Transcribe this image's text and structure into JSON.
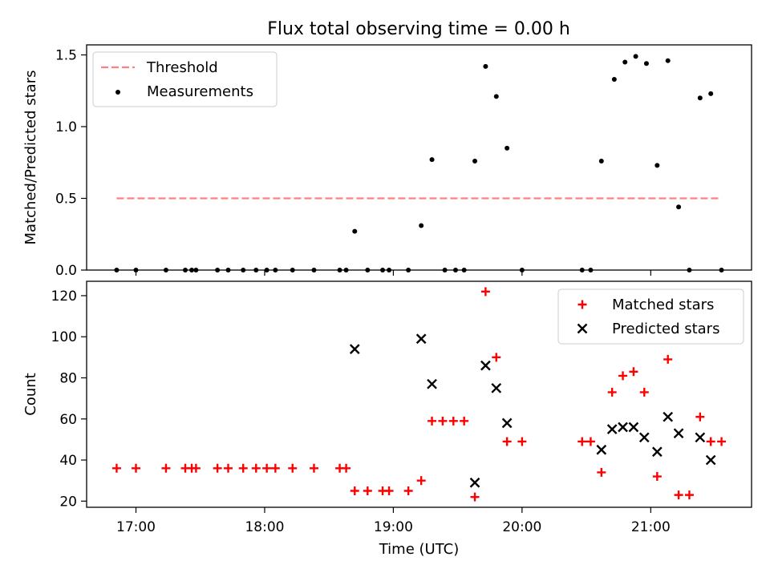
{
  "title": "Flux total observing time = 0.00 h",
  "chart_data": [
    {
      "type": "scatter",
      "ylabel": "Matched/Predicted stars",
      "xlim": [
        "16:37",
        "21:47"
      ],
      "ylim": [
        0,
        1.57
      ],
      "yticks": [
        "0.0",
        "0.5",
        "1.0",
        "1.5"
      ],
      "ytick_values": [
        0,
        0.5,
        1.0,
        1.5
      ],
      "legend_position": "upper-left",
      "legend": [
        "Threshold",
        "Measurements"
      ],
      "threshold": {
        "name": "Threshold",
        "value": 0.5,
        "x_start": "16:51",
        "x_end": "21:33",
        "color": "#ff8080",
        "style": "dashed"
      },
      "series": [
        {
          "name": "Measurements",
          "color": "#000000",
          "points": [
            [
              "16:51",
              0
            ],
            [
              "17:00",
              0
            ],
            [
              "17:14",
              0
            ],
            [
              "17:23",
              0
            ],
            [
              "17:26",
              0
            ],
            [
              "17:28",
              0
            ],
            [
              "17:38",
              0
            ],
            [
              "17:43",
              0
            ],
            [
              "17:50",
              0
            ],
            [
              "17:56",
              0
            ],
            [
              "18:01",
              0
            ],
            [
              "18:05",
              0
            ],
            [
              "18:13",
              0
            ],
            [
              "18:23",
              0
            ],
            [
              "18:35",
              0
            ],
            [
              "18:38",
              0
            ],
            [
              "18:42",
              0.27
            ],
            [
              "18:48",
              0
            ],
            [
              "18:55",
              0
            ],
            [
              "18:58",
              0
            ],
            [
              "19:07",
              0
            ],
            [
              "19:13",
              0.31
            ],
            [
              "19:18",
              0.77
            ],
            [
              "19:24",
              0
            ],
            [
              "19:29",
              0
            ],
            [
              "19:33",
              0
            ],
            [
              "19:38",
              0.76
            ],
            [
              "19:43",
              1.42
            ],
            [
              "19:48",
              1.21
            ],
            [
              "19:53",
              0.85
            ],
            [
              "20:00",
              0
            ],
            [
              "20:28",
              0
            ],
            [
              "20:32",
              0
            ],
            [
              "20:37",
              0.76
            ],
            [
              "20:43",
              1.33
            ],
            [
              "20:48",
              1.45
            ],
            [
              "20:53",
              1.49
            ],
            [
              "20:58",
              1.44
            ],
            [
              "21:03",
              0.73
            ],
            [
              "21:08",
              1.46
            ],
            [
              "21:13",
              0.44
            ],
            [
              "21:18",
              0
            ],
            [
              "21:23",
              1.2
            ],
            [
              "21:28",
              1.23
            ],
            [
              "21:33",
              0
            ]
          ]
        }
      ]
    },
    {
      "type": "scatter",
      "xlabel": "Time (UTC)",
      "ylabel": "Count",
      "xlim": [
        "16:37",
        "21:47"
      ],
      "ylim": [
        17,
        127
      ],
      "xticks": [
        "17:00",
        "18:00",
        "19:00",
        "20:00",
        "21:00"
      ],
      "yticks": [
        "20",
        "40",
        "60",
        "80",
        "100",
        "120"
      ],
      "ytick_values": [
        20,
        40,
        60,
        80,
        100,
        120
      ],
      "legend_position": "upper-right",
      "legend": [
        "Matched stars",
        "Predicted stars"
      ],
      "series": [
        {
          "name": "Matched stars",
          "marker": "plus",
          "color": "#ff0000",
          "points": [
            [
              "16:51",
              36
            ],
            [
              "17:00",
              36
            ],
            [
              "17:14",
              36
            ],
            [
              "17:23",
              36
            ],
            [
              "17:26",
              36
            ],
            [
              "17:28",
              36
            ],
            [
              "17:38",
              36
            ],
            [
              "17:43",
              36
            ],
            [
              "17:50",
              36
            ],
            [
              "17:56",
              36
            ],
            [
              "18:01",
              36
            ],
            [
              "18:05",
              36
            ],
            [
              "18:13",
              36
            ],
            [
              "18:23",
              36
            ],
            [
              "18:35",
              36
            ],
            [
              "18:38",
              36
            ],
            [
              "18:42",
              25
            ],
            [
              "18:48",
              25
            ],
            [
              "18:55",
              25
            ],
            [
              "18:58",
              25
            ],
            [
              "19:07",
              25
            ],
            [
              "19:13",
              30
            ],
            [
              "19:18",
              59
            ],
            [
              "19:23",
              59
            ],
            [
              "19:28",
              59
            ],
            [
              "19:33",
              59
            ],
            [
              "19:38",
              22
            ],
            [
              "19:43",
              122
            ],
            [
              "19:48",
              90
            ],
            [
              "19:53",
              49
            ],
            [
              "20:00",
              49
            ],
            [
              "20:28",
              49
            ],
            [
              "20:32",
              49
            ],
            [
              "20:37",
              34
            ],
            [
              "20:42",
              73
            ],
            [
              "20:47",
              81
            ],
            [
              "20:52",
              83
            ],
            [
              "20:57",
              73
            ],
            [
              "21:03",
              32
            ],
            [
              "21:08",
              89
            ],
            [
              "21:13",
              23
            ],
            [
              "21:18",
              23
            ],
            [
              "21:23",
              61
            ],
            [
              "21:28",
              49
            ],
            [
              "21:33",
              49
            ]
          ]
        },
        {
          "name": "Predicted stars",
          "marker": "x",
          "color": "#000000",
          "points": [
            [
              "18:42",
              94
            ],
            [
              "19:13",
              99
            ],
            [
              "19:18",
              77
            ],
            [
              "19:38",
              29
            ],
            [
              "19:43",
              86
            ],
            [
              "19:48",
              75
            ],
            [
              "19:53",
              58
            ],
            [
              "20:37",
              45
            ],
            [
              "20:42",
              55
            ],
            [
              "20:47",
              56
            ],
            [
              "20:52",
              56
            ],
            [
              "20:57",
              51
            ],
            [
              "21:03",
              44
            ],
            [
              "21:08",
              61
            ],
            [
              "21:13",
              53
            ],
            [
              "21:23",
              51
            ],
            [
              "21:28",
              40
            ]
          ]
        }
      ]
    }
  ]
}
